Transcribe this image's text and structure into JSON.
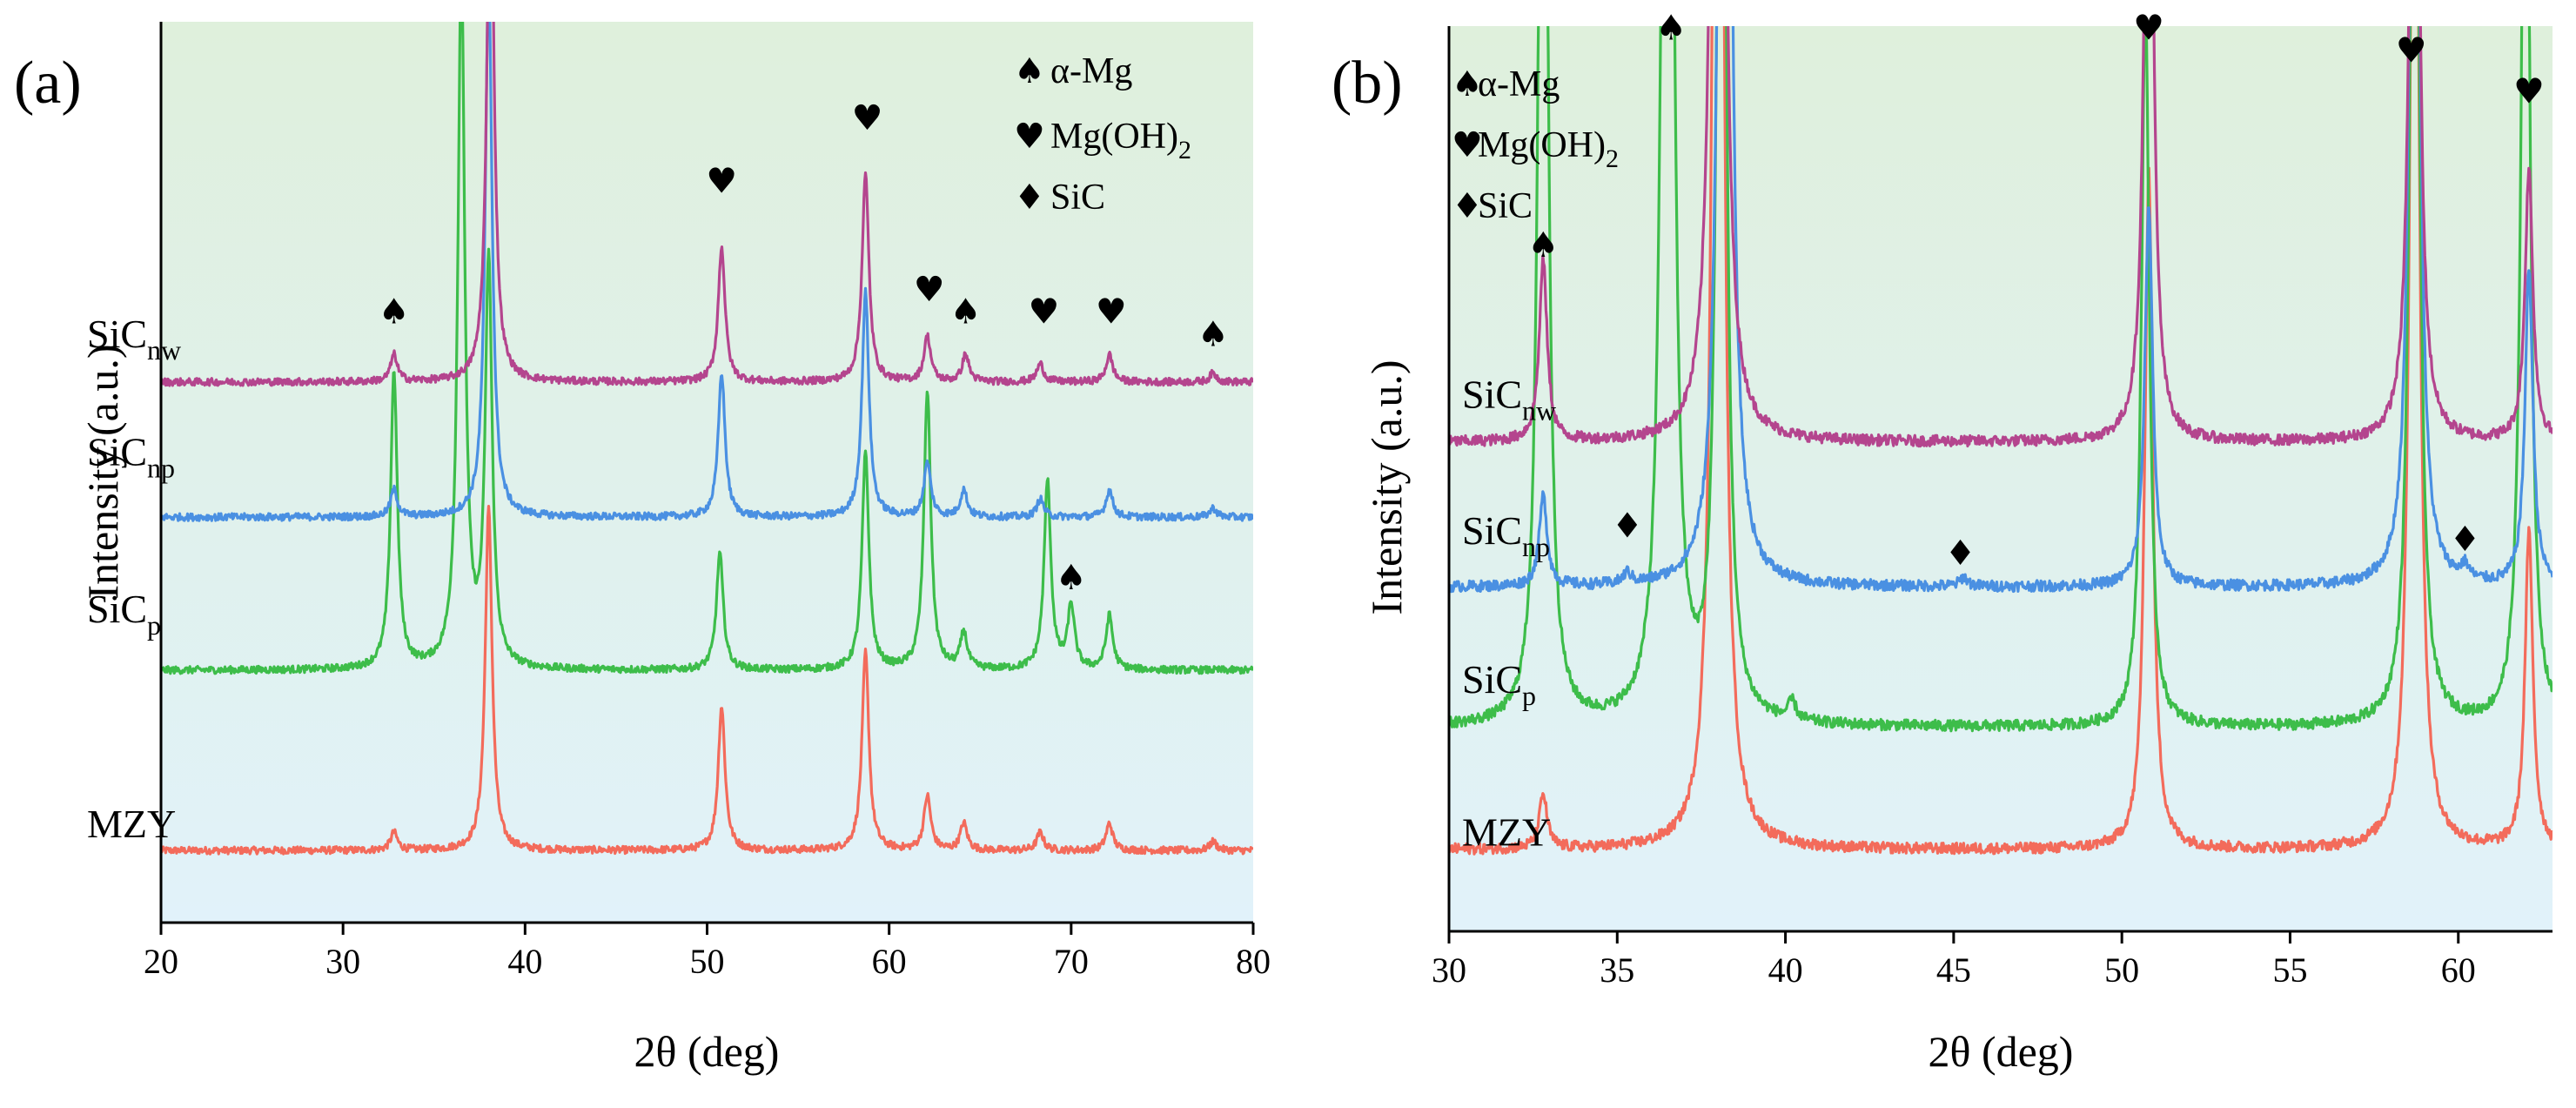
{
  "colors": {
    "MZY": "#f36b5b",
    "SiCp": "#3dbd4a",
    "SiCnp": "#4a90e2",
    "SiCnw": "#b4458e",
    "bg_top": "#dff0dc",
    "bg_bottom": "#e1f2fa"
  },
  "chart_data": [
    {
      "panel": "(a)",
      "type": "line",
      "title": "",
      "xlabel": "2θ (deg)",
      "ylabel": "Intensity (a.u.)",
      "xlim": [
        20,
        80
      ],
      "xticks": [
        "20",
        "30",
        "40",
        "50",
        "60",
        "70",
        "80"
      ],
      "series": [
        {
          "key": "MZY",
          "label_main": "MZY",
          "label_sub": "",
          "baseline": 0.08,
          "peaks": [
            [
              32.8,
              0.02
            ],
            [
              38.0,
              0.38
            ],
            [
              50.8,
              0.16
            ],
            [
              58.7,
              0.22
            ],
            [
              62.1,
              0.06
            ],
            [
              64.1,
              0.03
            ],
            [
              68.3,
              0.02
            ],
            [
              72.1,
              0.03
            ],
            [
              77.8,
              0.01
            ]
          ]
        },
        {
          "key": "SiCp",
          "label_main": "SiC",
          "label_sub": "p",
          "baseline": 0.28,
          "peaks": [
            [
              32.8,
              0.33
            ],
            [
              36.5,
              0.78
            ],
            [
              38.0,
              0.45
            ],
            [
              50.7,
              0.13
            ],
            [
              58.7,
              0.24
            ],
            [
              62.1,
              0.31
            ],
            [
              64.1,
              0.04
            ],
            [
              68.7,
              0.21
            ],
            [
              70.0,
              0.07
            ],
            [
              72.1,
              0.06
            ]
          ]
        },
        {
          "key": "SiCnp",
          "label_main": "SiC",
          "label_sub": "np",
          "baseline": 0.45,
          "peaks": [
            [
              32.8,
              0.03
            ],
            [
              38.0,
              0.6
            ],
            [
              50.8,
              0.16
            ],
            [
              58.7,
              0.25
            ],
            [
              62.1,
              0.06
            ],
            [
              64.1,
              0.03
            ],
            [
              68.3,
              0.02
            ],
            [
              72.1,
              0.03
            ],
            [
              77.8,
              0.01
            ]
          ]
        },
        {
          "key": "SiCnw",
          "label_main": "SiC",
          "label_sub": "nw",
          "baseline": 0.6,
          "peaks": [
            [
              32.8,
              0.03
            ],
            [
              38.1,
              0.62
            ],
            [
              50.8,
              0.15
            ],
            [
              58.7,
              0.23
            ],
            [
              62.1,
              0.05
            ],
            [
              64.2,
              0.03
            ],
            [
              68.3,
              0.02
            ],
            [
              72.1,
              0.03
            ],
            [
              77.8,
              0.01
            ]
          ]
        }
      ],
      "markers": [
        {
          "symbol": "♠",
          "x": 32.8,
          "y": 0.665
        },
        {
          "symbol": "♠",
          "x": 36.6,
          "y": 1.1
        },
        {
          "symbol": "♥",
          "x": 38.0,
          "y": 1.24
        },
        {
          "symbol": "♥",
          "x": 50.8,
          "y": 0.81
        },
        {
          "symbol": "♥",
          "x": 58.8,
          "y": 0.88
        },
        {
          "symbol": "♥",
          "x": 62.2,
          "y": 0.69
        },
        {
          "symbol": "♠",
          "x": 64.2,
          "y": 0.665
        },
        {
          "symbol": "♥",
          "x": 68.5,
          "y": 0.665
        },
        {
          "symbol": "♥",
          "x": 72.2,
          "y": 0.665
        },
        {
          "symbol": "♠",
          "x": 77.8,
          "y": 0.64
        },
        {
          "symbol": "♠",
          "x": 70.0,
          "y": 0.37
        }
      ],
      "legend": [
        {
          "symbol": "♠",
          "text": "α-Mg",
          "sub": ""
        },
        {
          "symbol": "♥",
          "text": "Mg(OH)",
          "sub": "2"
        },
        {
          "symbol": "♦",
          "text": "SiC",
          "sub": ""
        }
      ]
    },
    {
      "panel": "(b)",
      "type": "line",
      "title": "",
      "xlabel": "2θ (deg)",
      "ylabel": "Intensity (a.u.)",
      "xlim": [
        30,
        62.8
      ],
      "xticks": [
        "30",
        "35",
        "40",
        "45",
        "50",
        "55",
        "60"
      ],
      "series": [
        {
          "key": "MZY",
          "label_main": "MZY",
          "label_sub": "",
          "baseline": 0.09,
          "peaks": [
            [
              32.8,
              0.06
            ],
            [
              38.0,
              2.5
            ],
            [
              50.8,
              0.75
            ],
            [
              58.7,
              1.6
            ],
            [
              62.1,
              0.35
            ]
          ]
        },
        {
          "key": "SiCp",
          "label_main": "SiC",
          "label_sub": "p",
          "baseline": 0.225,
          "peaks": [
            [
              32.8,
              1.6
            ],
            [
              36.5,
              2.5
            ],
            [
              38.1,
              1.6
            ],
            [
              40.2,
              0.02
            ],
            [
              50.7,
              0.8
            ],
            [
              58.7,
              1.5
            ],
            [
              62.0,
              1.3
            ]
          ]
        },
        {
          "key": "SiCnp",
          "label_main": "SiC",
          "label_sub": "np",
          "baseline": 0.38,
          "peaks": [
            [
              32.8,
              0.1
            ],
            [
              35.3,
              0.012
            ],
            [
              38.2,
              2.5
            ],
            [
              45.3,
              0.01
            ],
            [
              50.8,
              0.42
            ],
            [
              58.7,
              1.5
            ],
            [
              60.2,
              0.015
            ],
            [
              62.1,
              0.35
            ]
          ]
        },
        {
          "key": "SiCnw",
          "label_main": "SiC",
          "label_sub": "nw",
          "baseline": 0.54,
          "peaks": [
            [
              32.8,
              0.2
            ],
            [
              38.0,
              2.5
            ],
            [
              50.8,
              1.0
            ],
            [
              58.7,
              1.2
            ],
            [
              62.1,
              0.3
            ]
          ]
        }
      ],
      "markers": [
        {
          "symbol": "♠",
          "x": 32.8,
          "y": 0.745
        },
        {
          "symbol": "♠",
          "x": 36.6,
          "y": 0.985
        },
        {
          "symbol": "♥",
          "x": 50.8,
          "y": 0.985
        },
        {
          "symbol": "♥",
          "x": 58.6,
          "y": 0.96
        },
        {
          "symbol": "♥",
          "x": 62.1,
          "y": 0.915
        },
        {
          "symbol": "♦",
          "x": 35.3,
          "y": 0.435
        },
        {
          "symbol": "♦",
          "x": 45.2,
          "y": 0.405
        },
        {
          "symbol": "♦",
          "x": 60.2,
          "y": 0.42
        }
      ],
      "legend": [
        {
          "symbol": "♠",
          "text": "α-Mg",
          "sub": ""
        },
        {
          "symbol": "♥",
          "text": "Mg(OH)",
          "sub": "2"
        },
        {
          "symbol": "♦",
          "text": "SiC",
          "sub": ""
        }
      ]
    }
  ]
}
